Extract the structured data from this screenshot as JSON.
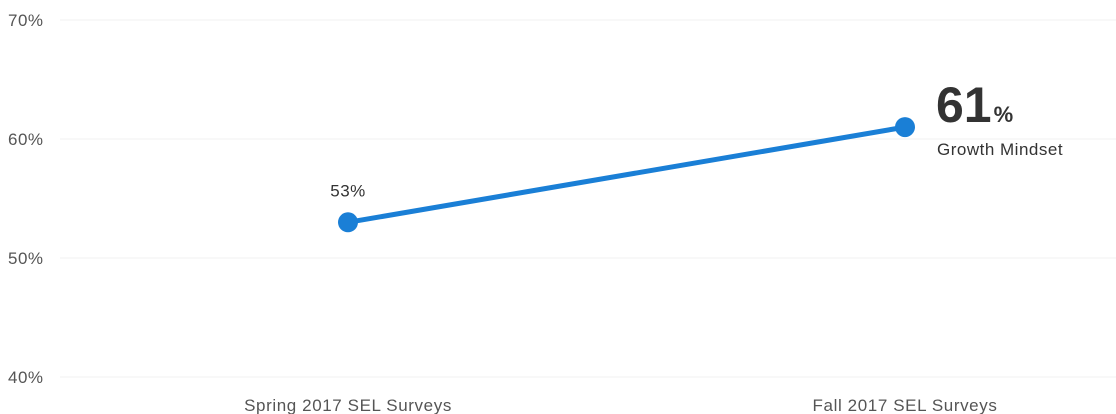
{
  "chart_data": {
    "type": "line",
    "title": "",
    "xlabel": "",
    "ylabel": "",
    "categories": [
      "Spring 2017 SEL Surveys",
      "Fall 2017 SEL Surveys"
    ],
    "series": [
      {
        "name": "Growth Mindset",
        "values": [
          53,
          61
        ],
        "color": "#1a7fd6"
      }
    ],
    "ylim": [
      40,
      70
    ],
    "y_ticks": [
      {
        "value": 70,
        "label": "70%"
      },
      {
        "value": 60,
        "label": "60%"
      },
      {
        "value": 50,
        "label": "50%"
      },
      {
        "value": 40,
        "label": "40%"
      }
    ],
    "data_labels": [
      "53%",
      ""
    ],
    "highlight": {
      "value": "61",
      "unit": "%",
      "caption": "Growth Mindset"
    },
    "grid": true,
    "legend": "none"
  }
}
